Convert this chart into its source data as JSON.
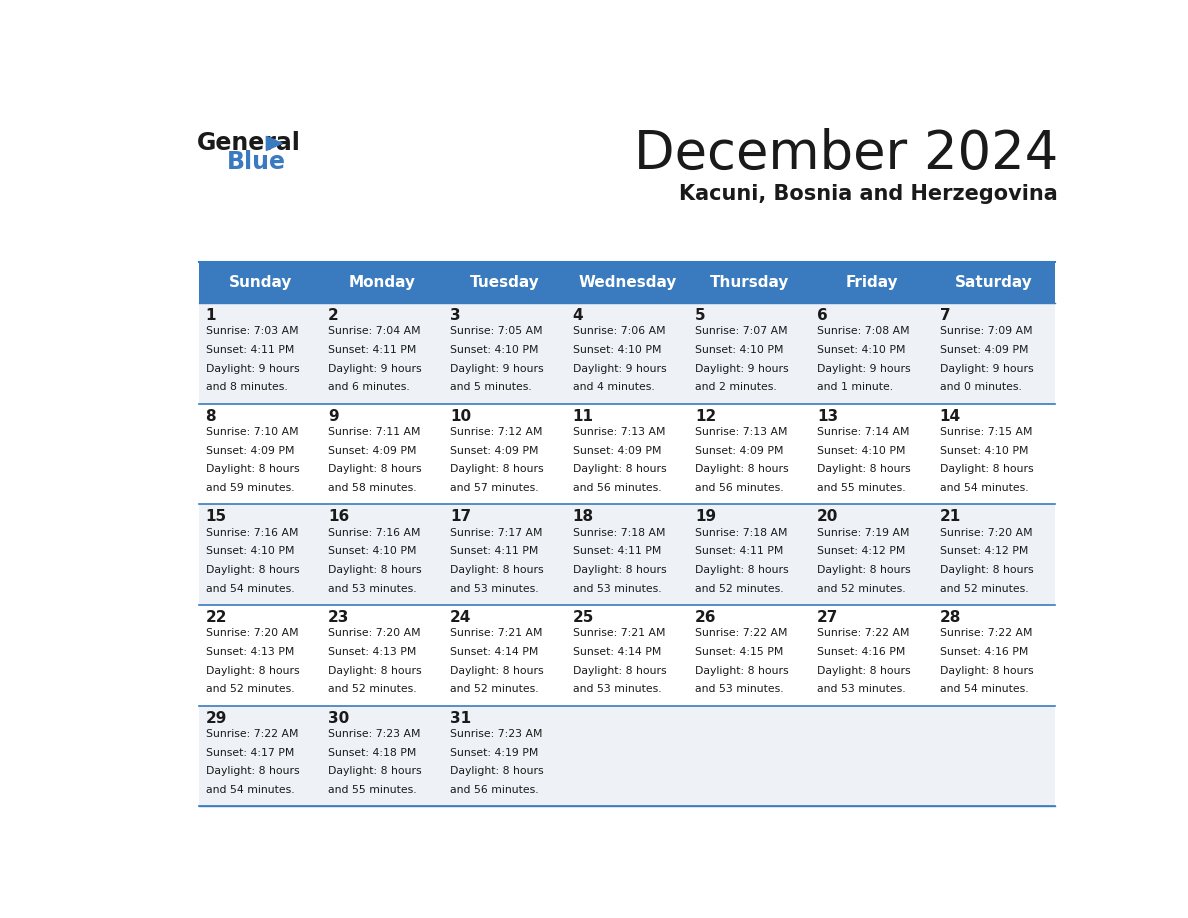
{
  "title": "December 2024",
  "subtitle": "Kacuni, Bosnia and Herzegovina",
  "header_color": "#3a7bbf",
  "header_text_color": "#ffffff",
  "cell_bg_even": "#eef2f7",
  "cell_bg_odd": "#ffffff",
  "border_color": "#3a7bbf",
  "text_color": "#1a1a1a",
  "day_headers": [
    "Sunday",
    "Monday",
    "Tuesday",
    "Wednesday",
    "Thursday",
    "Friday",
    "Saturday"
  ],
  "weeks": [
    [
      {
        "day": 1,
        "sunrise": "7:03 AM",
        "sunset": "4:11 PM",
        "daylight_h": "9 hours",
        "daylight_m": "and 8 minutes."
      },
      {
        "day": 2,
        "sunrise": "7:04 AM",
        "sunset": "4:11 PM",
        "daylight_h": "9 hours",
        "daylight_m": "and 6 minutes."
      },
      {
        "day": 3,
        "sunrise": "7:05 AM",
        "sunset": "4:10 PM",
        "daylight_h": "9 hours",
        "daylight_m": "and 5 minutes."
      },
      {
        "day": 4,
        "sunrise": "7:06 AM",
        "sunset": "4:10 PM",
        "daylight_h": "9 hours",
        "daylight_m": "and 4 minutes."
      },
      {
        "day": 5,
        "sunrise": "7:07 AM",
        "sunset": "4:10 PM",
        "daylight_h": "9 hours",
        "daylight_m": "and 2 minutes."
      },
      {
        "day": 6,
        "sunrise": "7:08 AM",
        "sunset": "4:10 PM",
        "daylight_h": "9 hours",
        "daylight_m": "and 1 minute."
      },
      {
        "day": 7,
        "sunrise": "7:09 AM",
        "sunset": "4:09 PM",
        "daylight_h": "9 hours",
        "daylight_m": "and 0 minutes."
      }
    ],
    [
      {
        "day": 8,
        "sunrise": "7:10 AM",
        "sunset": "4:09 PM",
        "daylight_h": "8 hours",
        "daylight_m": "and 59 minutes."
      },
      {
        "day": 9,
        "sunrise": "7:11 AM",
        "sunset": "4:09 PM",
        "daylight_h": "8 hours",
        "daylight_m": "and 58 minutes."
      },
      {
        "day": 10,
        "sunrise": "7:12 AM",
        "sunset": "4:09 PM",
        "daylight_h": "8 hours",
        "daylight_m": "and 57 minutes."
      },
      {
        "day": 11,
        "sunrise": "7:13 AM",
        "sunset": "4:09 PM",
        "daylight_h": "8 hours",
        "daylight_m": "and 56 minutes."
      },
      {
        "day": 12,
        "sunrise": "7:13 AM",
        "sunset": "4:09 PM",
        "daylight_h": "8 hours",
        "daylight_m": "and 56 minutes."
      },
      {
        "day": 13,
        "sunrise": "7:14 AM",
        "sunset": "4:10 PM",
        "daylight_h": "8 hours",
        "daylight_m": "and 55 minutes."
      },
      {
        "day": 14,
        "sunrise": "7:15 AM",
        "sunset": "4:10 PM",
        "daylight_h": "8 hours",
        "daylight_m": "and 54 minutes."
      }
    ],
    [
      {
        "day": 15,
        "sunrise": "7:16 AM",
        "sunset": "4:10 PM",
        "daylight_h": "8 hours",
        "daylight_m": "and 54 minutes."
      },
      {
        "day": 16,
        "sunrise": "7:16 AM",
        "sunset": "4:10 PM",
        "daylight_h": "8 hours",
        "daylight_m": "and 53 minutes."
      },
      {
        "day": 17,
        "sunrise": "7:17 AM",
        "sunset": "4:11 PM",
        "daylight_h": "8 hours",
        "daylight_m": "and 53 minutes."
      },
      {
        "day": 18,
        "sunrise": "7:18 AM",
        "sunset": "4:11 PM",
        "daylight_h": "8 hours",
        "daylight_m": "and 53 minutes."
      },
      {
        "day": 19,
        "sunrise": "7:18 AM",
        "sunset": "4:11 PM",
        "daylight_h": "8 hours",
        "daylight_m": "and 52 minutes."
      },
      {
        "day": 20,
        "sunrise": "7:19 AM",
        "sunset": "4:12 PM",
        "daylight_h": "8 hours",
        "daylight_m": "and 52 minutes."
      },
      {
        "day": 21,
        "sunrise": "7:20 AM",
        "sunset": "4:12 PM",
        "daylight_h": "8 hours",
        "daylight_m": "and 52 minutes."
      }
    ],
    [
      {
        "day": 22,
        "sunrise": "7:20 AM",
        "sunset": "4:13 PM",
        "daylight_h": "8 hours",
        "daylight_m": "and 52 minutes."
      },
      {
        "day": 23,
        "sunrise": "7:20 AM",
        "sunset": "4:13 PM",
        "daylight_h": "8 hours",
        "daylight_m": "and 52 minutes."
      },
      {
        "day": 24,
        "sunrise": "7:21 AM",
        "sunset": "4:14 PM",
        "daylight_h": "8 hours",
        "daylight_m": "and 52 minutes."
      },
      {
        "day": 25,
        "sunrise": "7:21 AM",
        "sunset": "4:14 PM",
        "daylight_h": "8 hours",
        "daylight_m": "and 53 minutes."
      },
      {
        "day": 26,
        "sunrise": "7:22 AM",
        "sunset": "4:15 PM",
        "daylight_h": "8 hours",
        "daylight_m": "and 53 minutes."
      },
      {
        "day": 27,
        "sunrise": "7:22 AM",
        "sunset": "4:16 PM",
        "daylight_h": "8 hours",
        "daylight_m": "and 53 minutes."
      },
      {
        "day": 28,
        "sunrise": "7:22 AM",
        "sunset": "4:16 PM",
        "daylight_h": "8 hours",
        "daylight_m": "and 54 minutes."
      }
    ],
    [
      {
        "day": 29,
        "sunrise": "7:22 AM",
        "sunset": "4:17 PM",
        "daylight_h": "8 hours",
        "daylight_m": "and 54 minutes."
      },
      {
        "day": 30,
        "sunrise": "7:23 AM",
        "sunset": "4:18 PM",
        "daylight_h": "8 hours",
        "daylight_m": "and 55 minutes."
      },
      {
        "day": 31,
        "sunrise": "7:23 AM",
        "sunset": "4:19 PM",
        "daylight_h": "8 hours",
        "daylight_m": "and 56 minutes."
      },
      null,
      null,
      null,
      null
    ]
  ]
}
